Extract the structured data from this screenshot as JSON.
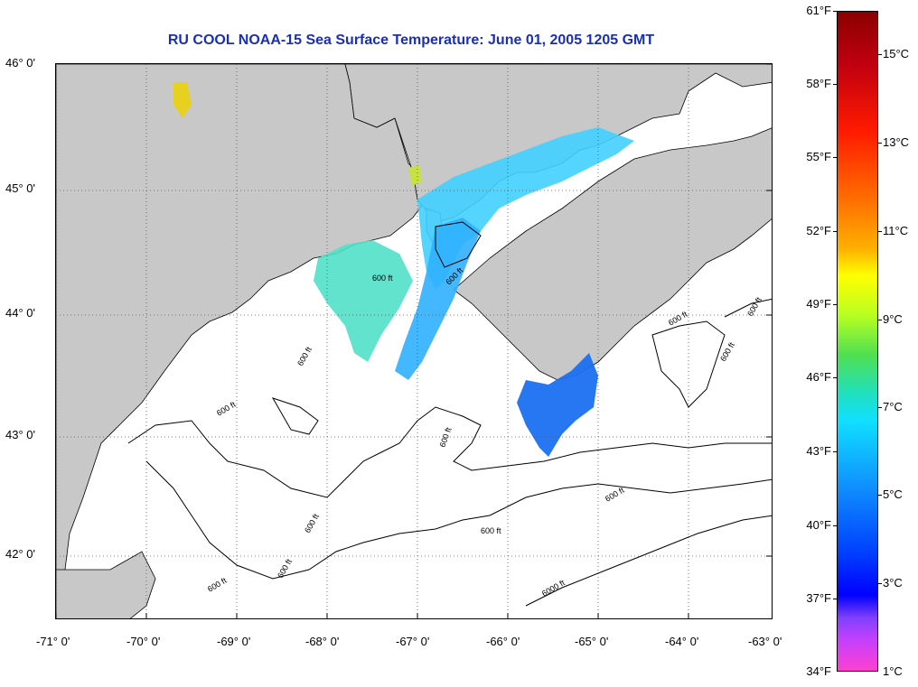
{
  "title": "RU COOL  NOAA-15  Sea Surface Temperature:  June 01, 2005 1205 GMT",
  "lat_labels": [
    "46° 0'",
    "45° 0'",
    "44° 0'",
    "43° 0'",
    "42° 0'"
  ],
  "lon_labels": [
    "-71° 0'",
    "-70° 0'",
    "-69° 0'",
    "-68° 0'",
    "-67° 0'",
    "-66° 0'",
    "-65° 0'",
    "-64° 0'",
    "-63° 0'"
  ],
  "colorbar": {
    "fahrenheit": [
      "61°F",
      "58°F",
      "55°F",
      "52°F",
      "49°F",
      "46°F",
      "43°F",
      "40°F",
      "37°F",
      "34°F"
    ],
    "celsius": [
      "15°C",
      "13°C",
      "11°C",
      "9°C",
      "7°C",
      "5°C",
      "3°C",
      "1°C"
    ]
  },
  "contour_labels": [
    "600 ft",
    "600 ft",
    "600 ft",
    "600 ft",
    "600 ft",
    "600 ft",
    "600 ft",
    "600 ft",
    "600 ft",
    "600 ft",
    "600 ft",
    "600 ft",
    "600 ft",
    "6000 ft"
  ],
  "colors": {
    "land": "#c8c8c8",
    "title": "#1a2fb5"
  }
}
